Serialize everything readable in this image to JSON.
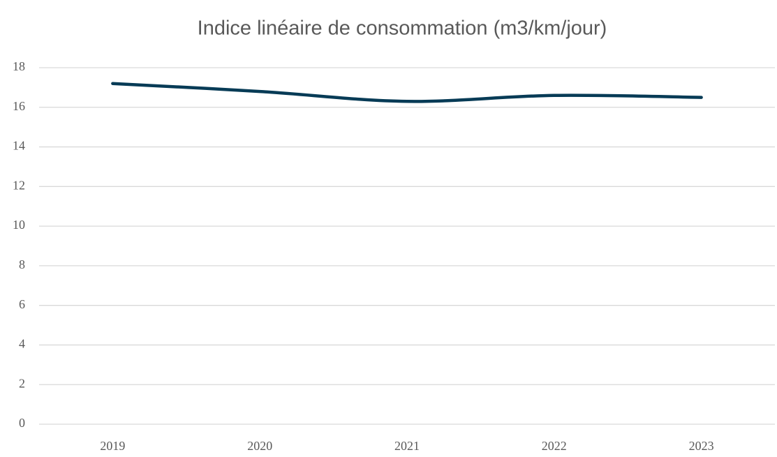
{
  "chart_data": {
    "type": "line",
    "title": "Indice linéaire de consommation (m3/km/jour)",
    "categories": [
      "2019",
      "2020",
      "2021",
      "2022",
      "2023"
    ],
    "series": [
      {
        "name": "Indice linéaire de consommation",
        "color": "#073b56",
        "values": [
          17.2,
          16.8,
          16.3,
          16.6,
          16.5
        ]
      }
    ],
    "ylim": [
      0,
      18
    ],
    "yticks": [
      0,
      2,
      4,
      6,
      8,
      10,
      12,
      14,
      16,
      18
    ],
    "grid": true,
    "smooth": true
  }
}
